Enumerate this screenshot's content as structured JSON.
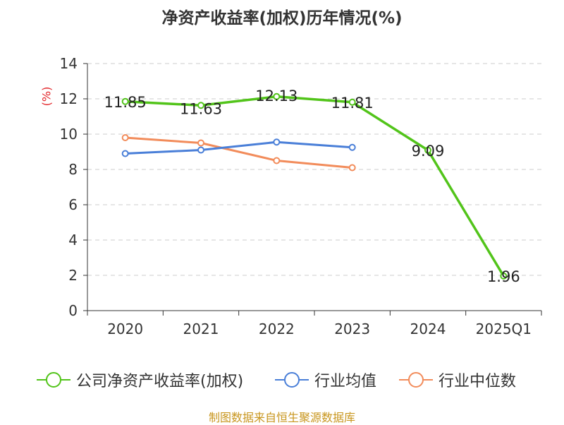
{
  "chart_data": {
    "type": "line",
    "title": "净资产收益率(加权)历年情况(%)",
    "ylabel": "(%)",
    "xlabel": "",
    "categories": [
      "2020",
      "2021",
      "2022",
      "2023",
      "2024",
      "2025Q1"
    ],
    "ylim": [
      0,
      14
    ],
    "yticks": [
      0,
      2,
      4,
      6,
      8,
      10,
      12,
      14
    ],
    "grid": true,
    "legend_position": "bottom",
    "series": [
      {
        "name": "公司净资产收益率(加权)",
        "color": "#52c41a",
        "values": [
          11.85,
          11.63,
          12.13,
          11.81,
          9.09,
          1.96
        ],
        "labels": [
          "11.85",
          "11.63",
          "12.13",
          "11.81",
          "9.09",
          "1.96"
        ]
      },
      {
        "name": "行业均值",
        "color": "#4a7fd8",
        "values": [
          8.9,
          9.1,
          9.55,
          9.25,
          null,
          null
        ]
      },
      {
        "name": "行业中位数",
        "color": "#f28c5b",
        "values": [
          9.8,
          9.5,
          8.5,
          8.1,
          null,
          null
        ]
      }
    ]
  },
  "source": "制图数据来自恒生聚源数据库"
}
